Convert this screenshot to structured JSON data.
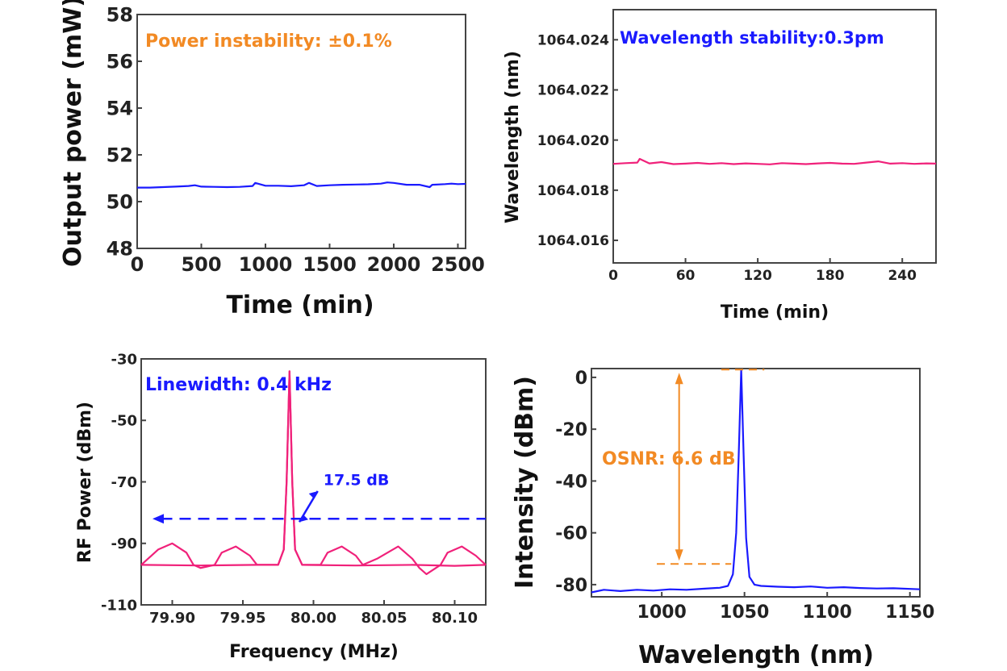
{
  "chart_data": [
    {
      "type": "line",
      "xlabel": "Time (min)",
      "ylabel": "Output power (mW)",
      "xlim": [
        0,
        2560
      ],
      "ylim": [
        48,
        58
      ],
      "xticks": [
        "0",
        "500",
        "1000",
        "1500",
        "2000",
        "2500"
      ],
      "yticks": [
        "48",
        "50",
        "52",
        "54",
        "56",
        "58"
      ],
      "annotation": "Power instability: ±0.1%",
      "colors": {
        "line": "#1a1aff",
        "annotation": "#f28a24"
      },
      "series": [
        {
          "x": [
            0,
            100,
            200,
            300,
            400,
            450,
            500,
            600,
            700,
            800,
            900,
            920,
            1000,
            1100,
            1200,
            1300,
            1340,
            1400,
            1500,
            1600,
            1700,
            1800,
            1900,
            1950,
            2000,
            2100,
            2200,
            2280,
            2300,
            2400,
            2450,
            2500,
            2560
          ],
          "y": [
            50.6,
            50.6,
            50.62,
            50.64,
            50.67,
            50.7,
            50.64,
            50.63,
            50.62,
            50.63,
            50.67,
            50.8,
            50.68,
            50.68,
            50.66,
            50.7,
            50.8,
            50.67,
            50.7,
            50.72,
            50.73,
            50.74,
            50.77,
            50.82,
            50.8,
            50.72,
            50.72,
            50.62,
            50.72,
            50.75,
            50.77,
            50.75,
            50.76
          ]
        }
      ]
    },
    {
      "type": "line",
      "xlabel": "Time (min)",
      "ylabel": "Wavelength (nm)",
      "xlim": [
        0,
        268
      ],
      "ylim": [
        1064.0151,
        1064.0252
      ],
      "xticks": [
        "0",
        "60",
        "120",
        "180",
        "240"
      ],
      "yticks": [
        "1064.016",
        "1064.018",
        "1064.020",
        "1064.022",
        "1064.024"
      ],
      "annotation": "Wavelength stability:0.3pm",
      "colors": {
        "line": "#f0217a",
        "annotation": "#1a1aff"
      },
      "series": [
        {
          "x": [
            0,
            10,
            20,
            22,
            30,
            40,
            50,
            60,
            70,
            80,
            90,
            100,
            110,
            120,
            130,
            140,
            150,
            160,
            170,
            180,
            190,
            200,
            210,
            220,
            230,
            240,
            250,
            260,
            268
          ],
          "y": [
            1064.01905,
            1064.01908,
            1064.0191,
            1064.01925,
            1064.01907,
            1064.01912,
            1064.01904,
            1064.01906,
            1064.01909,
            1064.01905,
            1064.01908,
            1064.01904,
            1064.01907,
            1064.01905,
            1064.01903,
            1064.01908,
            1064.01906,
            1064.01904,
            1064.01907,
            1064.01909,
            1064.01906,
            1064.01905,
            1064.0191,
            1064.01915,
            1064.01906,
            1064.01908,
            1064.01905,
            1064.01907,
            1064.01906
          ]
        }
      ]
    },
    {
      "type": "line",
      "xlabel": "Frequency (MHz)",
      "ylabel": "RF Power (dBm)",
      "xlim": [
        79.878,
        80.122
      ],
      "ylim": [
        -110,
        -30
      ],
      "xticks": [
        "79.90",
        "79.95",
        "80.00",
        "80.05",
        "80.10"
      ],
      "yticks": [
        "-110",
        "-90",
        "-70",
        "-50",
        "-30"
      ],
      "annotation": "Linewidth: 0.4 kHz",
      "marker_label": "17.5 dB",
      "reference_level": -82,
      "colors": {
        "line": "#f0217a",
        "annotation": "#1a1aff"
      },
      "series": [
        {
          "x": [
            79.878,
            79.89,
            79.9,
            79.91,
            79.915,
            79.92,
            79.93,
            79.935,
            79.945,
            79.955,
            79.96,
            79.975,
            79.979,
            79.981,
            79.983,
            79.985,
            79.987,
            79.992,
            80.005,
            80.01,
            80.02,
            80.03,
            80.035,
            80.045,
            80.06,
            80.07,
            80.075,
            80.08,
            80.09,
            80.095,
            80.105,
            80.115,
            80.122
          ],
          "y": [
            -97,
            -92,
            -90,
            -93,
            -97,
            -98,
            -97,
            -93,
            -91,
            -94,
            -97,
            -97,
            -92,
            -70,
            -34,
            -70,
            -92,
            -97,
            -97,
            -93,
            -91,
            -94,
            -97,
            -95,
            -91,
            -95,
            -98,
            -100,
            -97,
            -93,
            -91,
            -94,
            -97
          ]
        },
        {
          "x": [
            79.878,
            79.92,
            79.96,
            79.975,
            79.979,
            79.981,
            79.983,
            79.985,
            79.987,
            79.992,
            80.03,
            80.07,
            80.1,
            80.122
          ],
          "y": [
            -97,
            -97.2,
            -97,
            -97,
            -92,
            -70,
            -34,
            -70,
            -92,
            -97,
            -97.2,
            -97,
            -97.3,
            -97
          ]
        }
      ]
    },
    {
      "type": "line",
      "xlabel": "Wavelength (nm)",
      "ylabel": "Intensity (dBm)",
      "xlim": [
        957.5,
        1156
      ],
      "ylim": [
        -84.7,
        3.4
      ],
      "xticks": [
        "1000",
        "1050",
        "1100",
        "1150"
      ],
      "yticks": [
        "-80",
        "-60",
        "-40",
        "-20",
        "0"
      ],
      "annotation": "OSNR: 6.6 dB",
      "signal_level": 3,
      "noise_level": -72,
      "colors": {
        "line": "#1a1aff",
        "annotation": "#f28a24"
      },
      "series": [
        {
          "x": [
            957.5,
            965,
            975,
            985,
            995,
            1005,
            1015,
            1025,
            1035,
            1040,
            1043,
            1045,
            1046.5,
            1048,
            1049.5,
            1051,
            1053,
            1056,
            1060,
            1070,
            1080,
            1090,
            1100,
            1110,
            1120,
            1130,
            1140,
            1156
          ],
          "y": [
            -83,
            -82,
            -82.5,
            -82,
            -82.3,
            -81.8,
            -82,
            -81.6,
            -81.2,
            -80.5,
            -76,
            -60,
            -30,
            3,
            -30,
            -62,
            -77,
            -80,
            -80.5,
            -80.8,
            -81,
            -80.7,
            -81.2,
            -81,
            -81.3,
            -81.5,
            -81.4,
            -81.8
          ]
        }
      ]
    }
  ]
}
